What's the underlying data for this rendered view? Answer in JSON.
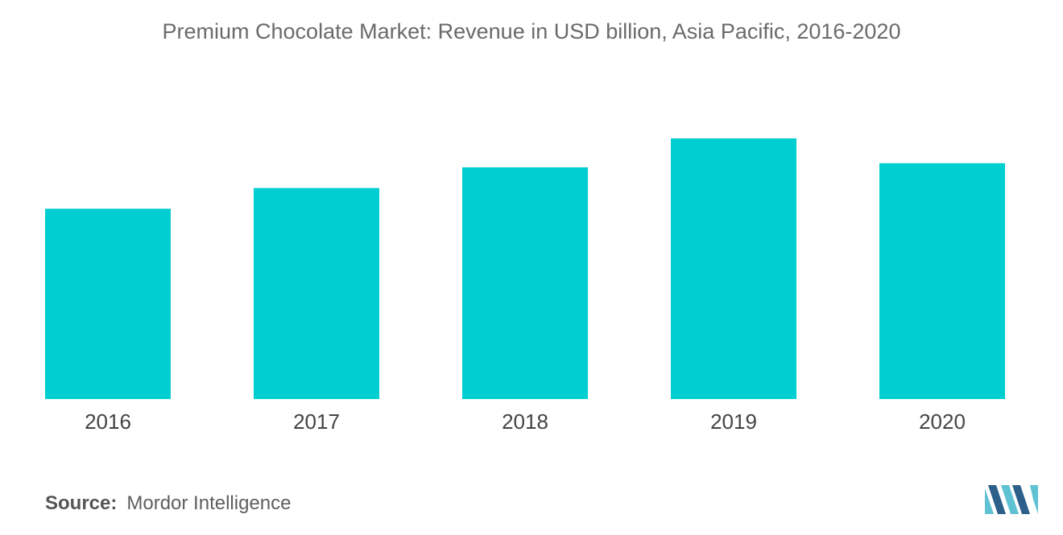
{
  "chart_data": {
    "type": "bar",
    "title": "Premium Chocolate Market: Revenue in USD billion, Asia Pacific, 2016-2020",
    "categories": [
      "2016",
      "2017",
      "2018",
      "2019",
      "2020"
    ],
    "values": [
      4.6,
      5.1,
      5.6,
      6.3,
      5.7
    ],
    "ylim": [
      0,
      7
    ],
    "grid": false,
    "legend": "none",
    "bar_color": "#00CED1"
  },
  "source": {
    "label": "Source:",
    "text": "Mordor Intelligence"
  },
  "colors": {
    "title": "#6a6a6a",
    "logo_dark": "#2c5f8a",
    "logo_light": "#5fc2d3"
  }
}
